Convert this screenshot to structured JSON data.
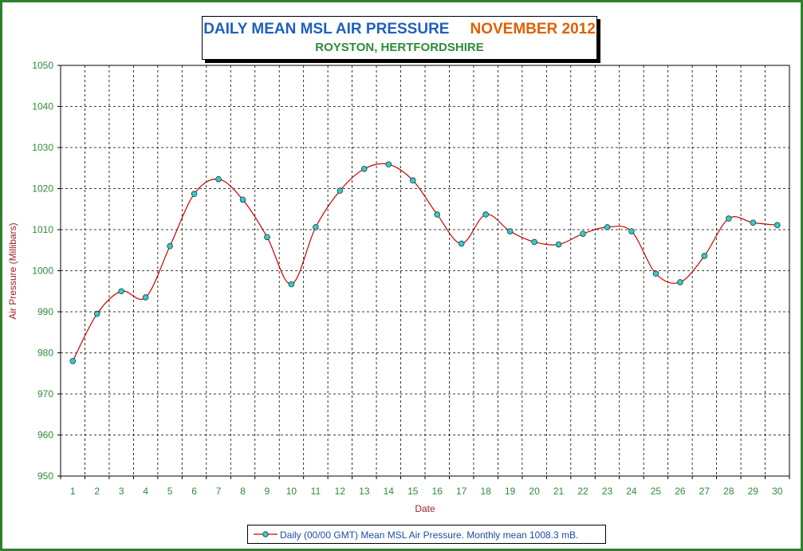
{
  "title": "DAILY MEAN MSL AIR PRESSURE",
  "title_period": "NOVEMBER 2012",
  "subtitle": "ROYSTON, HERTFORDSHIRE",
  "legend_label": "Daily (00/00 GMT) Mean MSL Air Pressure. Monthly mean 1008.3 mB.",
  "colors": {
    "title": "#1f5fbf",
    "period": "#e06000",
    "subtitle": "#2e8b3a",
    "tick_labels": "#2e8b3a",
    "axis_titles": "#a0202a",
    "series_line": "#cc0000",
    "marker_fill": "#33cccc",
    "frame": "#2f7f2f"
  },
  "chart_data": {
    "type": "line",
    "xlabel": "Date",
    "ylabel": "Air Pressure (Millibars)",
    "ylim": [
      950,
      1050
    ],
    "y_ticks": [
      950,
      960,
      970,
      980,
      990,
      1000,
      1010,
      1020,
      1030,
      1040,
      1050
    ],
    "x": [
      1,
      2,
      3,
      4,
      5,
      6,
      7,
      8,
      9,
      10,
      11,
      12,
      13,
      14,
      15,
      16,
      17,
      18,
      19,
      20,
      21,
      22,
      23,
      24,
      25,
      26,
      27,
      28,
      29,
      30
    ],
    "grid": true,
    "smoothed": true,
    "legend_position": "bottom",
    "series": [
      {
        "name": "Daily (00/00 GMT) Mean MSL Air Pressure. Monthly mean 1008.3 mB.",
        "values": [
          978.0,
          989.5,
          995.0,
          993.5,
          1006.0,
          1018.7,
          1022.3,
          1017.3,
          1008.2,
          996.7,
          1010.6,
          1019.5,
          1024.8,
          1025.9,
          1022.0,
          1013.7,
          1006.6,
          1013.7,
          1009.6,
          1007.0,
          1006.4,
          1009.0,
          1010.6,
          1009.6,
          999.3,
          997.2,
          1003.6,
          1012.7,
          1011.7,
          1011.1
        ]
      }
    ]
  }
}
